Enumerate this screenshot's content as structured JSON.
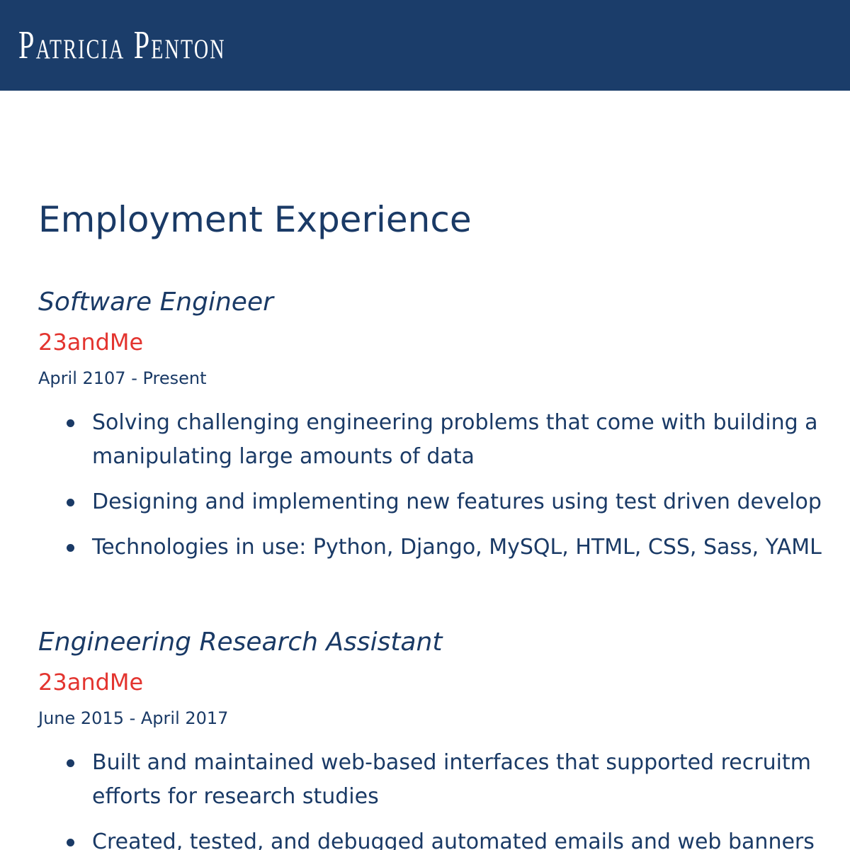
{
  "header": {
    "title": "Patricia Penton",
    "background_color": "#1b3d6a"
  },
  "main": {
    "section_title": "Employment Experience",
    "jobs": [
      {
        "title": "Software Engineer",
        "company": "23andMe",
        "dates": "April 2107 - Present",
        "bullets": [
          "Solving challenging engineering problems that come with building a",
          "manipulating large amounts of data",
          "Designing and implementing new features using test driven develop",
          "Technologies in use: Python, Django, MySQL, HTML, CSS, Sass, YAML"
        ]
      },
      {
        "title": "Engineering Research Assistant",
        "company": "23andMe",
        "dates": "June 2015 - April 2017",
        "bullets": [
          "Built and maintained web-based interfaces that supported recruitm",
          "efforts for research studies",
          "Created, tested, and debugged automated emails and web banners"
        ]
      }
    ]
  },
  "colors": {
    "accent": "#e3342f",
    "text": "#1a3a66"
  }
}
